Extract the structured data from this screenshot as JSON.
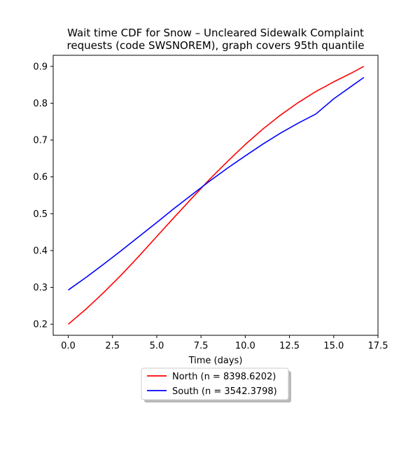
{
  "chart_data": {
    "type": "line",
    "title_line1": "Wait time CDF for Snow – Uncleared Sidewalk Complaint",
    "title_line2": "requests (code SWSNOREM), graph covers 95th quantile",
    "xlabel": "Time (days)",
    "ylabel": "",
    "xlim": [
      -0.85,
      17.5
    ],
    "ylim": [
      0.17,
      0.93
    ],
    "xticks": [
      0.0,
      2.5,
      5.0,
      7.5,
      10.0,
      12.5,
      15.0,
      17.5
    ],
    "xtick_labels": [
      "0.0",
      "2.5",
      "5.0",
      "7.5",
      "10.0",
      "12.5",
      "15.0",
      "17.5"
    ],
    "yticks": [
      0.2,
      0.3,
      0.4,
      0.5,
      0.6,
      0.7,
      0.8,
      0.9
    ],
    "ytick_labels": [
      "0.2",
      "0.3",
      "0.4",
      "0.5",
      "0.6",
      "0.7",
      "0.8",
      "0.9"
    ],
    "grid": false,
    "legend_placement": "below-center",
    "series": [
      {
        "name": "North (n = 8398.6202)",
        "color": "#ff0000",
        "x": [
          0,
          1,
          2,
          3,
          4,
          5,
          6,
          7,
          8,
          9,
          10,
          11,
          12,
          13,
          14,
          15,
          16,
          16.7
        ],
        "y": [
          0.2,
          0.241,
          0.286,
          0.334,
          0.385,
          0.438,
          0.491,
          0.543,
          0.594,
          0.642,
          0.688,
          0.73,
          0.768,
          0.802,
          0.832,
          0.858,
          0.882,
          0.9
        ]
      },
      {
        "name": "South (n = 3542.3798)",
        "color": "#0000ff",
        "x": [
          0,
          1,
          2,
          3,
          4,
          5,
          6,
          7,
          8,
          9,
          10,
          11,
          12,
          13,
          14,
          15,
          16,
          16.7
        ],
        "y": [
          0.293,
          0.327,
          0.363,
          0.4,
          0.438,
          0.476,
          0.515,
          0.552,
          0.589,
          0.624,
          0.657,
          0.689,
          0.719,
          0.746,
          0.771,
          0.812,
          0.846,
          0.87
        ]
      }
    ]
  }
}
